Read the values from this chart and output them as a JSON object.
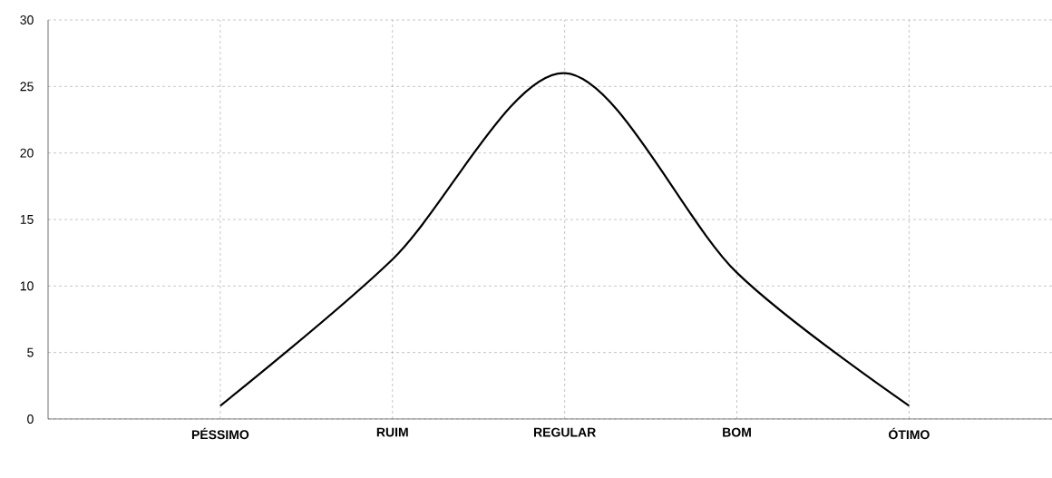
{
  "chart_data": {
    "type": "line",
    "categories": [
      "PÉSSIMO",
      "RUIM",
      "REGULAR",
      "BOM",
      "ÓTIMO"
    ],
    "values": [
      1,
      12,
      26,
      11,
      1
    ],
    "color": "#000000",
    "ylim": [
      0,
      30
    ],
    "yticks": [
      0,
      5,
      10,
      15,
      20,
      25,
      30
    ],
    "grid": true,
    "marker": "none",
    "line_style": "solid"
  }
}
